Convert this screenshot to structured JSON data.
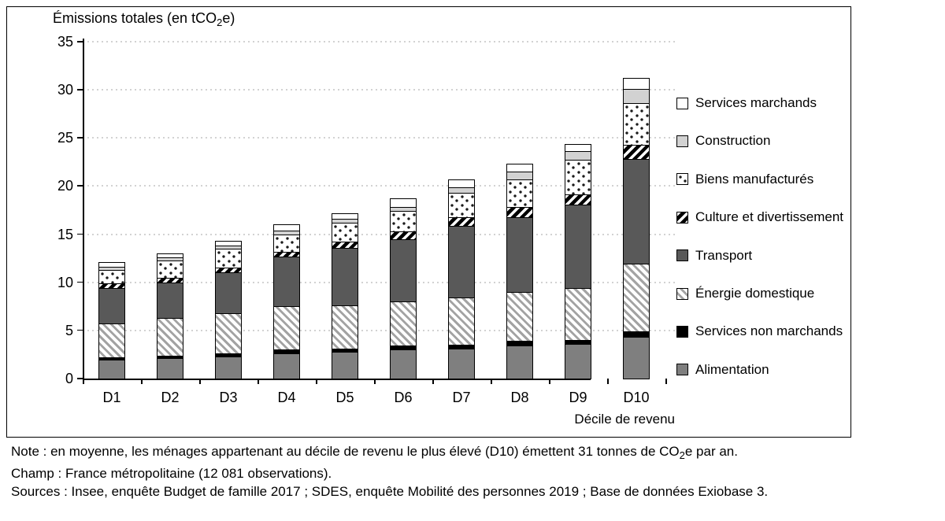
{
  "chart": {
    "title": {
      "pre": "Émissions totales (en tCO",
      "sub": "2",
      "post": "e)"
    },
    "x_axis_label": "Décile de revenu"
  },
  "chart_data": {
    "type": "bar",
    "stacked": true,
    "title": "Émissions totales (en tCO2e)",
    "xlabel": "Décile de revenu",
    "ylabel": "Émissions totales (en tCO2e)",
    "ylim": [
      0,
      35
    ],
    "y_ticks": [
      0,
      5,
      10,
      15,
      20,
      25,
      30,
      35
    ],
    "grid": "dotted horizontal",
    "legend_position": "right",
    "categories": [
      "D1",
      "D2",
      "D3",
      "D4",
      "D5",
      "D6",
      "D7",
      "D8",
      "D9",
      "D10"
    ],
    "series_bottom_to_top": [
      {
        "name": "Alimentation",
        "fill": {
          "type": "solid",
          "color": "#7f7f7f"
        },
        "values": [
          2.0,
          2.1,
          2.3,
          2.6,
          2.8,
          3.0,
          3.1,
          3.4,
          3.6,
          4.3
        ]
      },
      {
        "name": "Services non marchands",
        "fill": {
          "type": "solid",
          "color": "#000000"
        },
        "values": [
          0.2,
          0.3,
          0.3,
          0.4,
          0.3,
          0.4,
          0.4,
          0.5,
          0.4,
          0.6
        ]
      },
      {
        "name": "Énergie domestique",
        "fill": {
          "type": "hatch-light",
          "color": "#a3a3a3"
        },
        "values": [
          3.5,
          3.9,
          4.2,
          4.5,
          4.5,
          4.6,
          4.9,
          5.1,
          5.4,
          7.0
        ]
      },
      {
        "name": "Transport",
        "fill": {
          "type": "solid",
          "color": "#595959"
        },
        "values": [
          3.7,
          3.7,
          4.2,
          5.2,
          6.0,
          6.5,
          7.5,
          7.8,
          8.7,
          10.9
        ]
      },
      {
        "name": "Culture et divertissement",
        "fill": {
          "type": "hatch-bold",
          "color": "#000000"
        },
        "values": [
          0.5,
          0.5,
          0.5,
          0.5,
          0.6,
          0.8,
          0.9,
          1.0,
          1.0,
          1.5
        ]
      },
      {
        "name": "Biens manufacturés",
        "fill": {
          "type": "dots",
          "color": "#1a1a1a"
        },
        "values": [
          1.4,
          1.8,
          2.0,
          1.8,
          2.0,
          2.1,
          2.5,
          2.9,
          3.6,
          4.3
        ]
      },
      {
        "name": "Construction",
        "fill": {
          "type": "solid",
          "color": "#d2d2d2"
        },
        "values": [
          0.3,
          0.3,
          0.3,
          0.4,
          0.4,
          0.4,
          0.6,
          0.8,
          0.9,
          1.5
        ]
      },
      {
        "name": "Services marchands",
        "fill": {
          "type": "solid",
          "color": "#ffffff"
        },
        "values": [
          0.5,
          0.4,
          0.5,
          0.6,
          0.6,
          0.9,
          0.8,
          0.8,
          0.8,
          1.1
        ]
      }
    ],
    "totals": [
      12.1,
      13.0,
      14.3,
      16.0,
      17.2,
      18.7,
      20.7,
      22.3,
      24.4,
      31.2
    ]
  },
  "footer": {
    "note_pre": "Note : en moyenne, les ménages appartenant au décile de revenu le plus élevé (D10) émettent 31 tonnes de CO",
    "note_sub": "2",
    "note_post": "e par an.",
    "champ": "Champ : France métropolitaine (12 081 observations).",
    "sources": "Sources : Insee, enquête Budget de famille 2017 ; SDES, enquête Mobilité des personnes 2019 ; Base de données Exiobase 3."
  }
}
